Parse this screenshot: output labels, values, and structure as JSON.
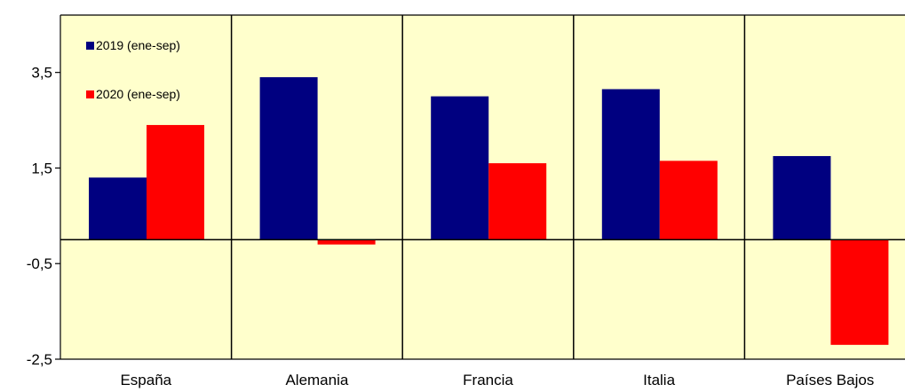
{
  "chart_data": {
    "type": "bar",
    "title": "",
    "xlabel": "",
    "ylabel": "",
    "categories": [
      "España",
      "Alemania",
      "Francia",
      "Italia",
      "Países Bajos"
    ],
    "series": [
      {
        "name": "2019 (ene-sep)",
        "values": [
          1.3,
          3.4,
          3.0,
          3.15,
          1.75
        ],
        "color": "#000080"
      },
      {
        "name": "2020 (ene-sep)",
        "values": [
          2.4,
          -0.1,
          1.6,
          1.65,
          -2.2
        ],
        "color": "#ff0000"
      }
    ],
    "ylim": [
      -2.5,
      4.7
    ],
    "yticks": [
      3.5,
      1.5,
      -0.5,
      -2.5
    ],
    "ytick_labels": [
      "3,5",
      "1,5",
      "-0,5",
      "-2,5"
    ],
    "plot_background": "#ffffcc",
    "grid": "vertical category separators",
    "legend_position": "top-left"
  }
}
